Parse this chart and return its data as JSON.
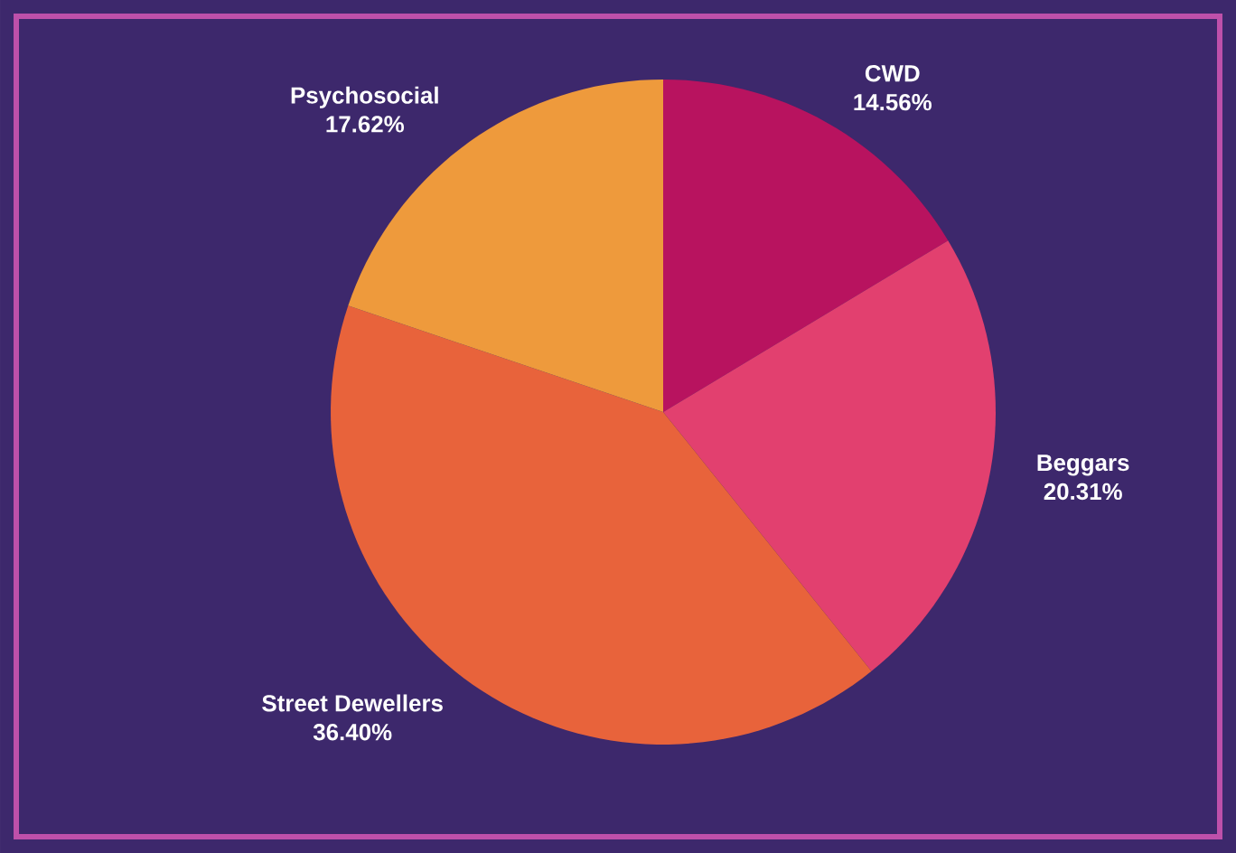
{
  "chart_data": {
    "type": "pie",
    "categories": [
      "CWD",
      "Beggars",
      "Street Dewellers",
      "Psychosocial"
    ],
    "values": [
      14.56,
      20.31,
      36.4,
      17.62
    ],
    "value_labels": [
      "14.56%",
      "20.31%",
      "36.40%",
      "17.62%"
    ],
    "colors": [
      "#b8135f",
      "#e2406f",
      "#e8633b",
      "#ee9a3c"
    ]
  }
}
